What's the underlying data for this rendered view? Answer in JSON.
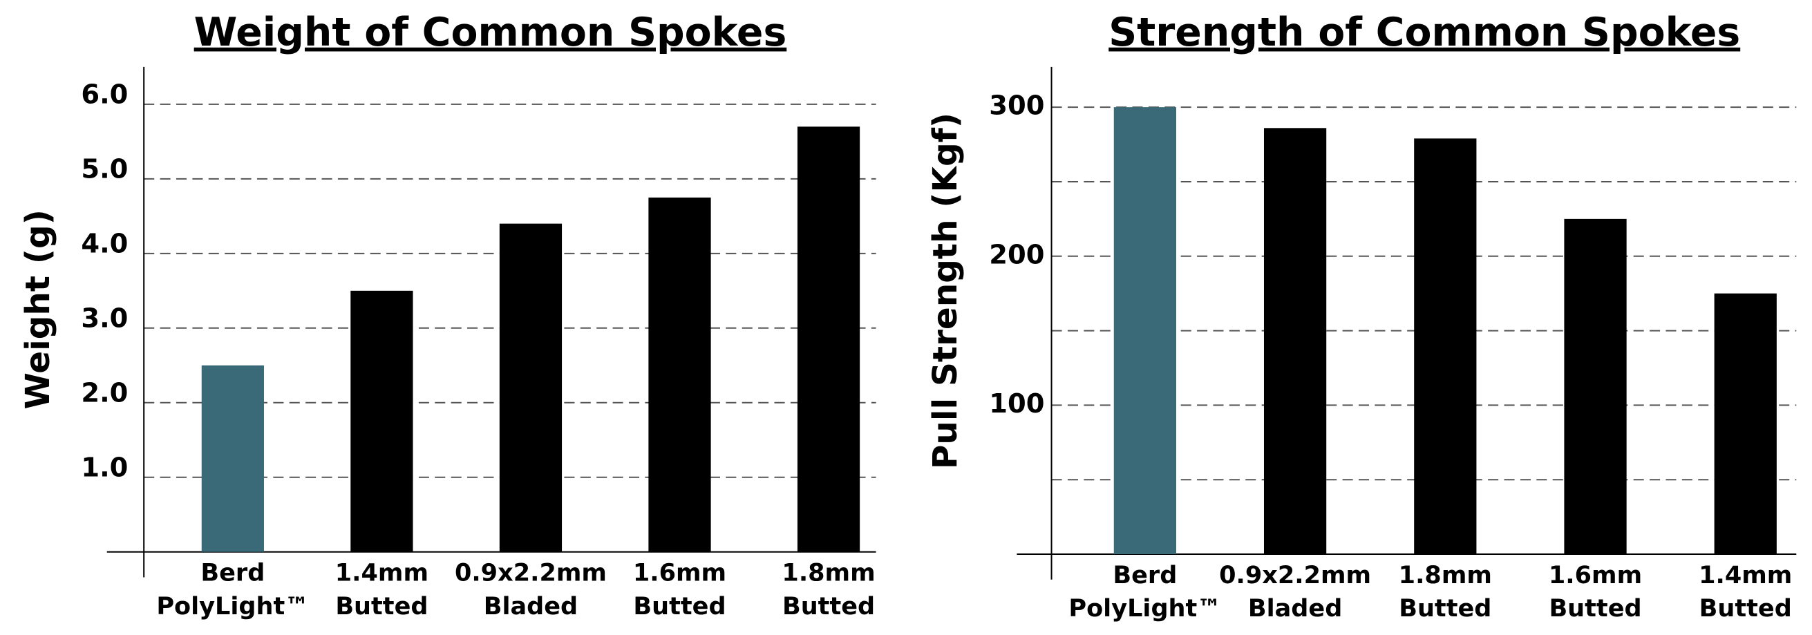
{
  "chart_data": [
    {
      "type": "bar",
      "title": "Weight of Common Spokes",
      "y_label": "Weight (g)",
      "categories": [
        [
          "Berd",
          "PolyLight™"
        ],
        [
          "1.4mm",
          "Butted"
        ],
        [
          "0.9x2.2mm",
          "Bladed"
        ],
        [
          "1.6mm",
          "Butted"
        ],
        [
          "1.8mm",
          "Butted"
        ]
      ],
      "values": [
        2.5,
        3.5,
        4.4,
        4.75,
        5.7
      ],
      "colors": [
        "#3a6a78",
        "#000000",
        "#000000",
        "#000000",
        "#000000"
      ],
      "ylim": [
        0,
        6.5
      ],
      "yticks": [
        {
          "value": 1,
          "label": "1.0"
        },
        {
          "value": 2,
          "label": "2.0"
        },
        {
          "value": 3,
          "label": "3.0"
        },
        {
          "value": 4,
          "label": "4.0"
        },
        {
          "value": 5,
          "label": "5.0"
        },
        {
          "value": 6,
          "label": "6.0"
        }
      ],
      "grid": true
    },
    {
      "type": "bar",
      "title": "Strength of Common Spokes",
      "y_label": "Pull Strength (Kgf)",
      "categories": [
        [
          "Berd",
          "PolyLight™"
        ],
        [
          "0.9x2.2mm",
          "Bladed"
        ],
        [
          "1.8mm",
          "Butted"
        ],
        [
          "1.6mm",
          "Butted"
        ],
        [
          "1.4mm",
          "Butted"
        ]
      ],
      "values": [
        300,
        286,
        279,
        225,
        175
      ],
      "colors": [
        "#3a6a78",
        "#000000",
        "#000000",
        "#000000",
        "#000000"
      ],
      "ylim": [
        0,
        327
      ],
      "yticks": [
        100,
        200,
        300
      ],
      "minor_yticks": [
        50,
        150,
        250
      ],
      "grid": true
    }
  ]
}
